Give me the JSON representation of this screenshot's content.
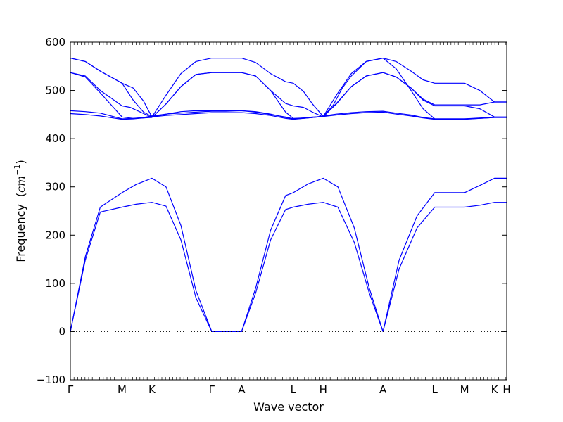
{
  "chart_data": {
    "type": "line",
    "title": "",
    "xlabel": "Wave vector",
    "ylabel": {
      "text": "Frequency",
      "unit_open": "(",
      "unit_base": "cm",
      "unit_exp": "−1",
      "unit_close": ")"
    },
    "ylim": [
      -100,
      600
    ],
    "yticks": [
      "−100",
      "0",
      "100",
      "200",
      "300",
      "400",
      "500",
      "600"
    ],
    "xlim": [
      0,
      14.6
    ],
    "xticks": [
      {
        "label": "Γ",
        "x": 0
      },
      {
        "label": "M",
        "x": 1.73
      },
      {
        "label": "K",
        "x": 2.73
      },
      {
        "label": "Γ",
        "x": 4.73
      },
      {
        "label": "A",
        "x": 5.73
      },
      {
        "label": "L",
        "x": 7.46
      },
      {
        "label": "H",
        "x": 8.46
      },
      {
        "label": "A",
        "x": 10.46
      },
      {
        "label": "L",
        "x": 12.19
      },
      {
        "label": "M",
        "x": 13.19
      },
      {
        "label": "K",
        "x": 14.19
      },
      {
        "label": "H",
        "x": 14.6
      }
    ],
    "zero_line": 0,
    "line_color": "#0000ff",
    "grid": false,
    "series": [
      {
        "x": [
          0,
          0.5,
          1,
          1.73,
          2.2,
          2.73,
          3.2,
          3.7,
          4.2,
          4.73,
          5.0,
          5.2,
          5.73,
          6.2,
          6.7,
          7.2,
          7.46,
          7.95,
          8.46,
          8.95,
          9.5,
          10.0,
          10.46,
          11.0,
          11.6,
          12.19,
          12.7,
          13.19,
          13.7,
          14.19,
          14.6
        ],
        "y": [
          0,
          148,
          248,
          258,
          264,
          268,
          260,
          190,
          70,
          0,
          0,
          0,
          0,
          80,
          190,
          253,
          258,
          264,
          268,
          258,
          185,
          80,
          0,
          130,
          215,
          258,
          258,
          258,
          262,
          268,
          268
        ]
      },
      {
        "x": [
          0,
          0.5,
          1,
          1.73,
          2.2,
          2.73,
          3.2,
          3.7,
          4.2,
          4.73,
          5.0,
          5.2,
          5.73,
          6.2,
          6.7,
          7.2,
          7.46,
          7.95,
          8.46,
          8.95,
          9.5,
          10.0,
          10.46,
          11.0,
          11.6,
          12.19,
          12.7,
          13.19,
          13.7,
          14.19,
          14.6
        ],
        "y": [
          0,
          155,
          258,
          288,
          305,
          318,
          300,
          220,
          85,
          0,
          0,
          0,
          0,
          90,
          210,
          282,
          288,
          306,
          318,
          300,
          215,
          90,
          0,
          148,
          240,
          288,
          288,
          288,
          303,
          318,
          318
        ]
      },
      {
        "x": [
          0,
          0.5,
          1,
          1.73,
          2.1,
          2.45,
          2.73,
          3.2,
          3.7,
          4.2,
          4.73,
          5.0,
          5.2,
          5.73,
          6.2,
          6.7,
          7.2,
          7.46,
          7.8,
          8.1,
          8.46,
          8.9,
          9.4,
          9.9,
          10.46,
          10.9,
          11.4,
          11.8,
          12.19,
          12.7,
          13.19,
          13.7,
          14.19,
          14.6
        ],
        "y": [
          452,
          450,
          447,
          440,
          441,
          443,
          445,
          448,
          450,
          452,
          454,
          454,
          454,
          454,
          452,
          448,
          442,
          440,
          442,
          444,
          446,
          449,
          452,
          454,
          455,
          451,
          447,
          443,
          440,
          440,
          440,
          442,
          444,
          444
        ]
      },
      {
        "x": [
          0,
          0.5,
          1,
          1.73,
          2.1,
          2.45,
          2.73,
          3.2,
          3.7,
          4.2,
          4.73,
          5.0,
          5.2,
          5.73,
          6.2,
          6.7,
          7.2,
          7.46,
          7.8,
          8.1,
          8.46,
          8.9,
          9.4,
          9.9,
          10.46,
          10.9,
          11.4,
          11.8,
          12.19,
          12.7,
          13.19,
          13.7,
          14.19,
          14.6
        ],
        "y": [
          458,
          456,
          453,
          441,
          442,
          444,
          447,
          451,
          453,
          455,
          457,
          457,
          457,
          458,
          456,
          451,
          444,
          441,
          442,
          444,
          447,
          451,
          454,
          456,
          457,
          453,
          449,
          444,
          441,
          441,
          441,
          443,
          445,
          445
        ]
      },
      {
        "x": [
          0,
          0.5,
          1,
          1.73,
          2.0,
          2.35,
          2.73,
          3.2,
          3.7,
          4.2,
          4.73,
          5.0,
          5.2,
          5.73,
          6.2,
          6.7,
          7.2,
          7.46,
          7.8,
          8.1,
          8.46,
          8.9,
          9.4,
          9.9,
          10.46,
          10.9,
          11.4,
          11.8,
          12.19,
          12.7,
          13.19,
          13.7,
          14.19,
          14.6
        ],
        "y": [
          537,
          530,
          500,
          468,
          465,
          455,
          444,
          472,
          508,
          533,
          537,
          537,
          537,
          537,
          530,
          500,
          473,
          468,
          465,
          455,
          445,
          473,
          508,
          530,
          537,
          528,
          505,
          480,
          468,
          468,
          468,
          462,
          445,
          445
        ]
      },
      {
        "x": [
          0,
          0.5,
          1,
          1.73,
          2.1,
          2.45,
          2.73,
          3.2,
          3.7,
          4.2,
          4.73,
          5.0,
          5.2,
          5.73,
          6.2,
          6.7,
          7.2,
          7.46,
          7.8,
          8.1,
          8.46,
          8.9,
          9.4,
          9.9,
          10.46,
          10.9,
          11.4,
          11.8,
          12.19,
          12.7,
          13.19,
          13.7,
          14.19,
          14.6
        ],
        "y": [
          537,
          528,
          495,
          445,
          442,
          443,
          444,
          472,
          508,
          533,
          537,
          537,
          537,
          537,
          530,
          500,
          455,
          442,
          443,
          444,
          446,
          472,
          508,
          530,
          537,
          528,
          505,
          482,
          470,
          470,
          470,
          470,
          476,
          476
        ]
      },
      {
        "x": [
          0,
          0.5,
          1,
          1.73,
          2.1,
          2.45,
          2.73,
          3.2,
          3.7,
          4.2,
          4.73,
          5.0,
          5.2,
          5.73,
          6.2,
          6.7,
          7.2,
          7.46,
          7.8,
          8.1,
          8.46,
          8.9,
          9.4,
          9.9,
          10.46,
          10.9,
          11.4,
          11.8,
          12.19,
          12.7,
          13.19,
          13.7,
          14.19,
          14.6
        ],
        "y": [
          567,
          560,
          540,
          515,
          505,
          478,
          445,
          490,
          535,
          560,
          567,
          567,
          567,
          567,
          558,
          535,
          518,
          515,
          498,
          472,
          446,
          490,
          535,
          560,
          567,
          560,
          540,
          522,
          515,
          515,
          515,
          500,
          476,
          476
        ]
      },
      {
        "x": [
          0,
          0.5,
          1,
          1.73,
          2.1,
          2.45,
          2.73,
          3.0,
          3.3,
          3.7,
          4.2,
          4.73,
          5.0,
          5.2,
          5.73,
          6.2,
          6.7,
          7.2,
          7.46,
          7.8,
          8.1,
          8.46,
          8.8,
          9.1,
          9.4,
          9.9,
          10.46,
          10.9,
          11.4,
          11.8,
          12.19,
          12.7,
          13.19,
          13.7,
          14.19,
          14.6
        ],
        "y": [
          567,
          560,
          540,
          515,
          480,
          455,
          446,
          448,
          452,
          456,
          458,
          458,
          458,
          458,
          458,
          455,
          450,
          445,
          441,
          443,
          445,
          446,
          470,
          505,
          530,
          560,
          567,
          545,
          500,
          462,
          441,
          441,
          441,
          442,
          444,
          444
        ]
      }
    ]
  }
}
